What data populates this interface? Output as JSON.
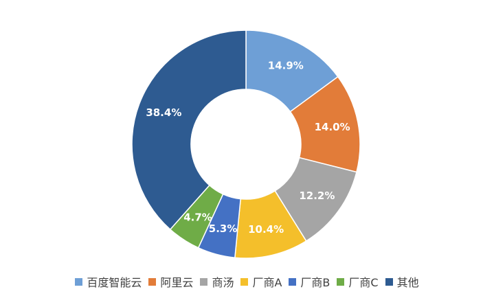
{
  "chart_data": {
    "type": "donut",
    "categories": [
      "百度智能云",
      "阿里云",
      "商汤",
      "厂商A",
      "厂商B",
      "厂商C",
      "其他"
    ],
    "values": [
      14.9,
      14.0,
      12.2,
      10.4,
      5.3,
      4.7,
      38.4
    ],
    "value_labels": [
      "14.9%",
      "14.0%",
      "12.2%",
      "10.4%",
      "5.3%",
      "4.7%",
      "38.4%"
    ],
    "colors": [
      "#6e9fd6",
      "#e27c39",
      "#a5a5a5",
      "#f4bf2b",
      "#4471c4",
      "#6fac47",
      "#2e5b91"
    ],
    "legend": "bottom"
  }
}
